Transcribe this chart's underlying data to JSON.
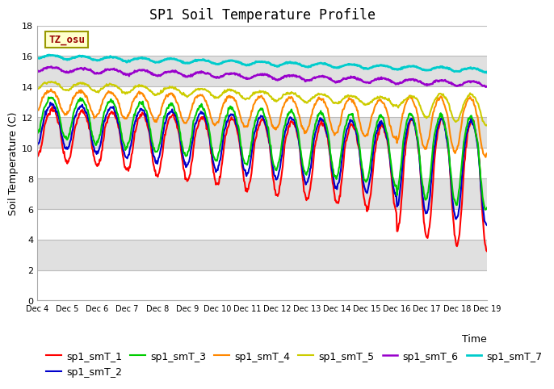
{
  "title": "SP1 Soil Temperature Profile",
  "xlabel": "Time",
  "ylabel": "Soil Temperature (C)",
  "ylim": [
    0,
    18
  ],
  "annotation": "TZ_osu",
  "x_tick_labels": [
    "Dec 4",
    "Dec 5",
    "Dec 6",
    "Dec 7",
    "Dec 8",
    "Dec 9",
    "Dec 10",
    "Dec 11",
    "Dec 12",
    "Dec 13",
    "Dec 14",
    "Dec 15",
    "Dec 16",
    "Dec 17",
    "Dec 18",
    "Dec 19"
  ],
  "legend_labels": [
    "sp1_smT_1",
    "sp1_smT_2",
    "sp1_smT_3",
    "sp1_smT_4",
    "sp1_smT_5",
    "sp1_smT_6",
    "sp1_smT_7"
  ],
  "colors": [
    "#ff0000",
    "#0000cc",
    "#00cc00",
    "#ff8800",
    "#cccc00",
    "#9900cc",
    "#00cccc"
  ],
  "lwidths": [
    1.5,
    1.5,
    1.5,
    1.5,
    1.5,
    1.8,
    2.0
  ],
  "background_color": "#ffffff",
  "band_colors": [
    "#ffffff",
    "#e0e0e0"
  ],
  "grid_color": "#cccccc",
  "title_fontsize": 12,
  "axis_fontsize": 9,
  "tick_fontsize": 8,
  "legend_fontsize": 9
}
